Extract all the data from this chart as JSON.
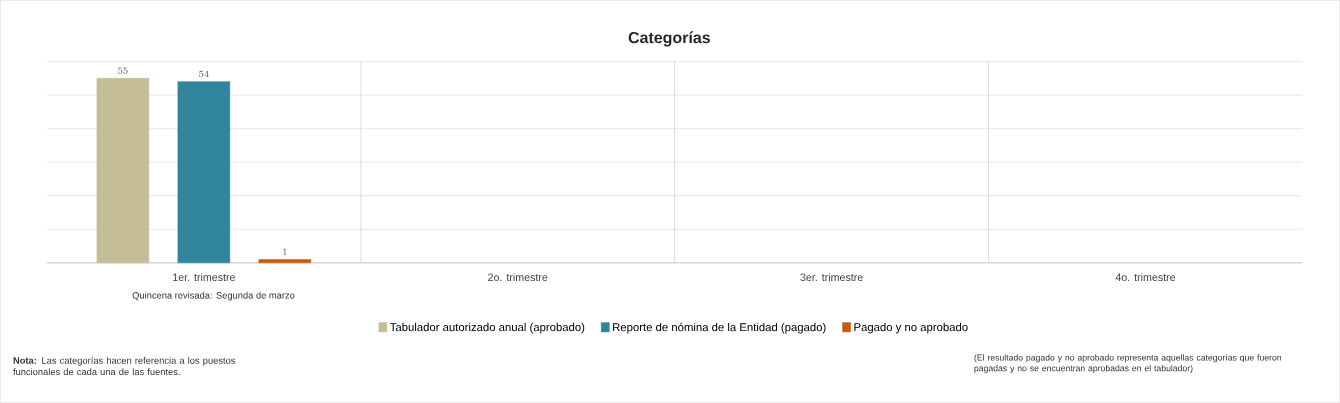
{
  "chart_data": {
    "type": "bar",
    "title": "Categorías",
    "categories": [
      "1er. trimestre",
      "2o. trimestre",
      "3er. trimestre",
      "4o. trimestre"
    ],
    "series": [
      {
        "name": "Tabulador autorizado anual (aprobado)",
        "color": "#c4bd97",
        "values": [
          55,
          null,
          null,
          null
        ]
      },
      {
        "name": "Reporte de nómina de la Entidad (pagado)",
        "color": "#31859c",
        "values": [
          54,
          null,
          null,
          null
        ]
      },
      {
        "name": "Pagado y no aprobado",
        "color": "#c55a11",
        "values": [
          1,
          null,
          null,
          null
        ]
      }
    ],
    "ylim": [
      0,
      60
    ],
    "yticks": [
      {
        "value": 0,
        "label": null
      },
      {
        "value": 10,
        "label": null
      },
      {
        "value": 20,
        "label": null
      },
      {
        "value": 30,
        "label": null
      },
      {
        "value": 40,
        "label": null
      },
      {
        "value": 50,
        "label": null
      },
      {
        "value": 60,
        "label": null
      }
    ],
    "tick_labels": "x",
    "grid": "y",
    "legend": "bottom",
    "data_labels": true,
    "annotations": [
      "Quincena revisada: Segunda de marzo",
      "**Nota:** Las categorías hacen referencia a los puestos funcionales de cada una de las fuentes.",
      "(El resultado pagado y no aprobado representa aquellas categorías que fueron pagadas y no se encuentran aprobadas en el tabulador)"
    ]
  }
}
